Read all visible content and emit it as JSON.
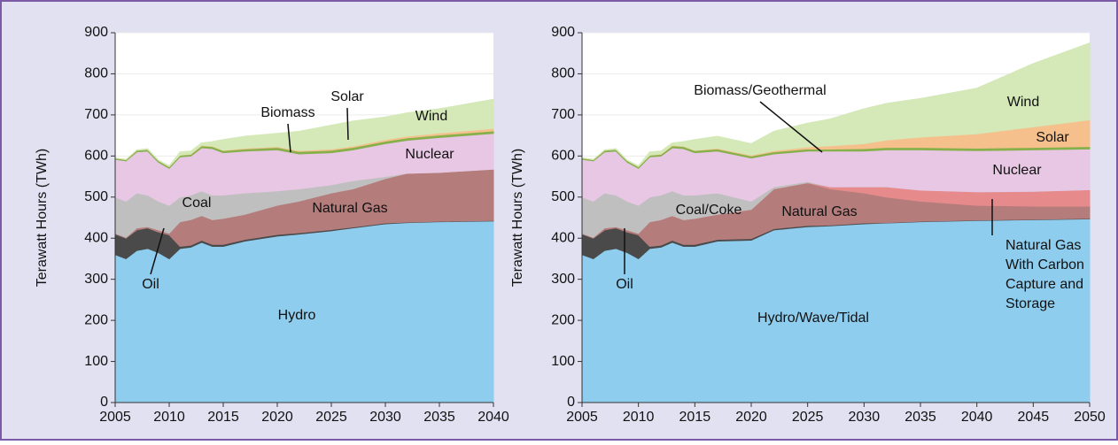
{
  "chart_data": [
    {
      "type": "area",
      "stacked": true,
      "ylabel": "Terawatt Hours (TWh)",
      "x": [
        2005,
        2006,
        2007,
        2008,
        2009,
        2010,
        2011,
        2012,
        2013,
        2014,
        2015,
        2017,
        2020,
        2022,
        2025,
        2027,
        2030,
        2032,
        2035,
        2040
      ],
      "xlim": [
        2005,
        2040
      ],
      "xticks": [
        2005,
        2010,
        2015,
        2020,
        2025,
        2030,
        2035,
        2040
      ],
      "ylim": [
        0,
        900
      ],
      "yticks": [
        0,
        100,
        200,
        300,
        400,
        500,
        600,
        700,
        800,
        900
      ],
      "grid": true,
      "series": [
        {
          "name": "Hydro",
          "color": "#8ecdee",
          "values": [
            360,
            350,
            370,
            375,
            365,
            350,
            375,
            378,
            390,
            380,
            380,
            393,
            405,
            410,
            418,
            425,
            435,
            438,
            440,
            442
          ]
        },
        {
          "name": "Oil",
          "color": "#4a4a4a",
          "values": [
            50,
            50,
            50,
            50,
            50,
            58,
            5,
            5,
            5,
            5,
            5,
            4,
            4,
            3,
            3,
            2,
            2,
            1,
            1,
            1
          ]
        },
        {
          "name": "Natural Gas",
          "color": "#b57c7c",
          "values": [
            2,
            2,
            5,
            3,
            5,
            4,
            60,
            62,
            60,
            60,
            63,
            61,
            71,
            77,
            89,
            93,
            108,
            119,
            119,
            125
          ]
        },
        {
          "name": "Coal",
          "color": "#bfbfbf",
          "values": [
            88,
            88,
            85,
            77,
            70,
            68,
            60,
            60,
            60,
            60,
            57,
            52,
            35,
            30,
            20,
            20,
            5,
            0,
            0,
            0
          ]
        },
        {
          "name": "Nuclear",
          "color": "#e7c7e4",
          "values": [
            92,
            98,
            100,
            107,
            95,
            90,
            98,
            95,
            105,
            113,
            103,
            102,
            100,
            85,
            78,
            75,
            80,
            80,
            85,
            87
          ]
        },
        {
          "name": "Biomass",
          "color": "#86b04a",
          "values": [
            3,
            3,
            4,
            4,
            4,
            4,
            4,
            4,
            5,
            5,
            5,
            5,
            6,
            6,
            6,
            6,
            6,
            6,
            6,
            6
          ]
        },
        {
          "name": "Solar",
          "color": "#f5c08c",
          "values": [
            0,
            0,
            0,
            0,
            0,
            0,
            0,
            1,
            1,
            1,
            1,
            2,
            2,
            2,
            3,
            3,
            4,
            4,
            5,
            6
          ]
        },
        {
          "name": "Wind",
          "color": "#d4e8b8",
          "values": [
            0,
            0,
            1,
            2,
            1,
            2,
            8,
            7,
            6,
            11,
            26,
            29,
            32,
            47,
            58,
            61,
            55,
            57,
            59,
            71
          ]
        }
      ]
    },
    {
      "type": "area",
      "stacked": true,
      "ylabel": "Terawatt Hours (TWh)",
      "x": [
        2005,
        2006,
        2007,
        2008,
        2009,
        2010,
        2011,
        2012,
        2013,
        2014,
        2015,
        2017,
        2020,
        2022,
        2025,
        2027,
        2030,
        2032,
        2035,
        2040,
        2045,
        2050
      ],
      "xlim": [
        2005,
        2050
      ],
      "xticks": [
        2005,
        2010,
        2015,
        2020,
        2025,
        2030,
        2035,
        2040,
        2045,
        2050
      ],
      "ylim": [
        0,
        900
      ],
      "yticks": [
        0,
        100,
        200,
        300,
        400,
        500,
        600,
        700,
        800,
        900
      ],
      "grid": true,
      "series": [
        {
          "name": "Hydro/Wave/Tidal",
          "color": "#8ecdee",
          "values": [
            360,
            350,
            370,
            375,
            365,
            350,
            375,
            378,
            390,
            380,
            380,
            393,
            395,
            420,
            428,
            430,
            435,
            437,
            440,
            443,
            445,
            447
          ]
        },
        {
          "name": "Oil",
          "color": "#4a4a4a",
          "values": [
            50,
            50,
            50,
            50,
            50,
            58,
            5,
            5,
            5,
            5,
            5,
            4,
            4,
            3,
            3,
            2,
            2,
            1,
            1,
            1,
            1,
            1
          ]
        },
        {
          "name": "Natural Gas",
          "color": "#b57c7c",
          "values": [
            2,
            2,
            5,
            3,
            5,
            4,
            60,
            62,
            60,
            60,
            63,
            61,
            71,
            97,
            104,
            88,
            73,
            62,
            49,
            36,
            32,
            30
          ]
        },
        {
          "name": "Natural Gas With Carbon Capture and Storage",
          "color": "#e68a8c",
          "values": [
            0,
            0,
            0,
            0,
            0,
            0,
            0,
            0,
            0,
            0,
            0,
            0,
            0,
            0,
            0,
            5,
            15,
            25,
            27,
            33,
            36,
            40
          ]
        },
        {
          "name": "Coal/Coke",
          "color": "#bfbfbf",
          "values": [
            88,
            88,
            85,
            77,
            70,
            68,
            60,
            60,
            60,
            60,
            57,
            52,
            20,
            5,
            3,
            0,
            0,
            0,
            0,
            0,
            0,
            0
          ]
        },
        {
          "name": "Nuclear",
          "color": "#e7c7e4",
          "values": [
            92,
            98,
            100,
            107,
            95,
            90,
            98,
            95,
            105,
            113,
            103,
            102,
            105,
            80,
            74,
            87,
            87,
            90,
            98,
            100,
            101,
            99
          ]
        },
        {
          "name": "Biomass/Geothermal",
          "color": "#86b04a",
          "values": [
            3,
            3,
            4,
            4,
            4,
            4,
            4,
            4,
            5,
            5,
            5,
            5,
            5,
            5,
            5,
            5,
            6,
            6,
            6,
            6,
            6,
            6
          ]
        },
        {
          "name": "Solar",
          "color": "#f5c08c",
          "values": [
            0,
            0,
            0,
            0,
            0,
            0,
            0,
            1,
            1,
            1,
            1,
            2,
            2,
            3,
            5,
            8,
            12,
            18,
            25,
            35,
            50,
            65
          ]
        },
        {
          "name": "Wind",
          "color": "#d4e8b8",
          "values": [
            0,
            0,
            1,
            2,
            1,
            2,
            8,
            7,
            6,
            11,
            26,
            29,
            28,
            47,
            58,
            65,
            85,
            89,
            94,
            111,
            154,
            187
          ]
        }
      ]
    }
  ]
}
